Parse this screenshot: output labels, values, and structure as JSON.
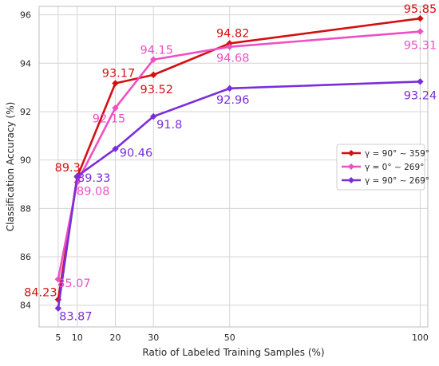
{
  "chart_data": {
    "type": "line",
    "xlabel": "Ratio of Labeled Training Samples (%)",
    "ylabel": "Classification Accuracy (%)",
    "x": [
      5,
      10,
      20,
      30,
      50,
      100
    ],
    "xticks": [
      "5",
      "10",
      "20",
      "30",
      "50",
      "100"
    ],
    "yticks": [
      "84",
      "86",
      "88",
      "90",
      "92",
      "94",
      "96"
    ],
    "xlim": [
      0,
      102
    ],
    "ylim": [
      83.1,
      96.35
    ],
    "grid": true,
    "legend_position": "right",
    "series": [
      {
        "name": "γ = 90° ∼ 359°",
        "color": "#d40f12",
        "values": [
          84.23,
          89.3,
          93.17,
          93.52,
          94.82,
          95.85
        ],
        "labels": [
          "84.23",
          "89.3",
          "93.17",
          "93.52",
          "94.82",
          "95.85"
        ]
      },
      {
        "name": "γ = 0° ∼ 269°",
        "color": "#ef4fc4",
        "values": [
          85.07,
          89.08,
          92.15,
          94.15,
          94.68,
          95.31
        ],
        "labels": [
          "85.07",
          "89.08",
          "92.15",
          "94.15",
          "94.68",
          "95.31"
        ]
      },
      {
        "name": "γ = 90° ∼ 269°",
        "color": "#7a2ed9",
        "values": [
          83.87,
          89.33,
          90.46,
          91.8,
          92.96,
          93.24
        ],
        "labels": [
          "83.87",
          "89.33",
          "90.46",
          "91.8",
          "92.96",
          "93.24"
        ]
      }
    ]
  }
}
